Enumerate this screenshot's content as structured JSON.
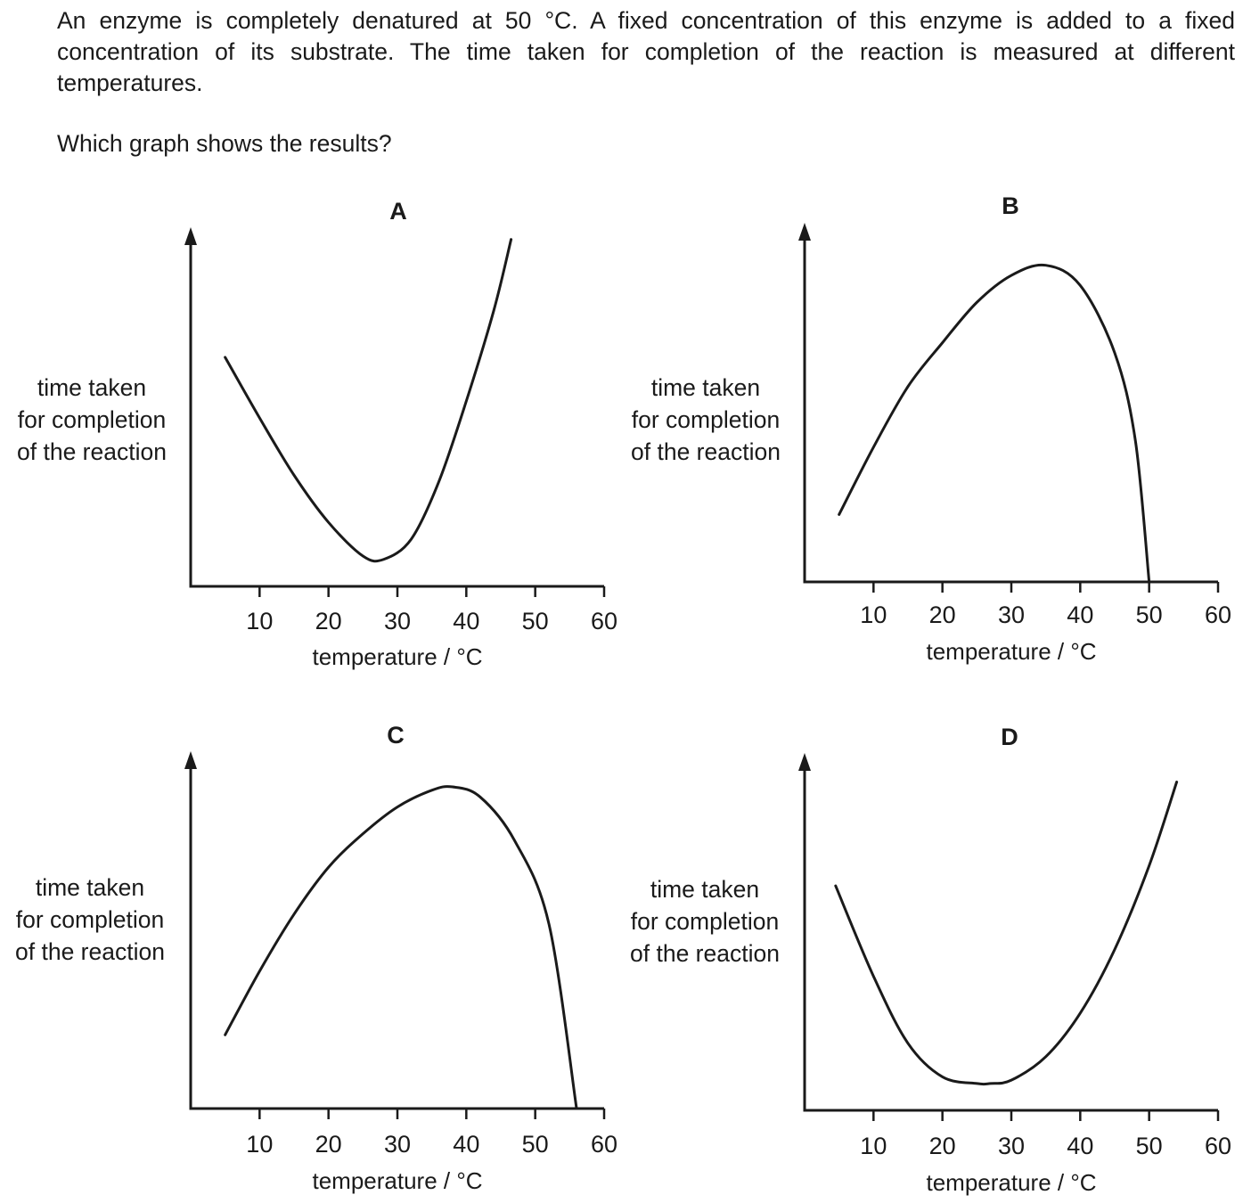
{
  "question": {
    "text": "An enzyme is completely denatured at 50 °C. A fixed concentration of this enzyme is added to a fixed concentration of its substrate. The time taken for completion of the reaction is measured at different temperatures.",
    "prompt": "Which graph shows the results?"
  },
  "colors": {
    "line": "#1a1a1a",
    "background": "#ffffff"
  },
  "chart_data": [
    {
      "type": "line",
      "title": "A",
      "xlabel": "temperature / °C",
      "ylabel": [
        "time taken",
        "for completion",
        "of the reaction"
      ],
      "xlim": [
        0,
        60
      ],
      "x_ticks": [
        10,
        20,
        30,
        40,
        50,
        60
      ],
      "y_ticks": [],
      "y_scale": "relative (no values printed)",
      "grid": false,
      "series": [
        {
          "x": [
            5,
            10,
            15,
            20,
            25,
            28,
            32,
            36,
            40,
            44,
            46.5
          ],
          "y": [
            0.68,
            0.5,
            0.33,
            0.19,
            0.09,
            0.08,
            0.14,
            0.31,
            0.55,
            0.82,
            1.03
          ]
        }
      ]
    },
    {
      "type": "line",
      "title": "B",
      "xlabel": "temperature / °C",
      "ylabel": [
        "time taken",
        "for completion",
        "of the reaction"
      ],
      "xlim": [
        0,
        60
      ],
      "x_ticks": [
        10,
        20,
        30,
        40,
        50,
        60
      ],
      "y_ticks": [],
      "y_scale": "relative (no values printed)",
      "grid": false,
      "series": [
        {
          "x": [
            5,
            10,
            15,
            20,
            25,
            30,
            35,
            40,
            45,
            48,
            50
          ],
          "y": [
            0.2,
            0.4,
            0.58,
            0.71,
            0.83,
            0.91,
            0.94,
            0.88,
            0.68,
            0.42,
            0.0
          ]
        }
      ]
    },
    {
      "type": "line",
      "title": "C",
      "xlabel": "temperature / °C",
      "ylabel": [
        "time taken",
        "for completion",
        "of the reaction"
      ],
      "xlim": [
        0,
        60
      ],
      "x_ticks": [
        10,
        20,
        30,
        40,
        50,
        60
      ],
      "y_ticks": [],
      "y_scale": "relative (no values printed)",
      "grid": false,
      "series": [
        {
          "x": [
            5,
            10,
            15,
            20,
            25,
            30,
            35,
            38,
            42,
            47,
            52,
            56
          ],
          "y": [
            0.22,
            0.41,
            0.58,
            0.72,
            0.82,
            0.9,
            0.95,
            0.96,
            0.93,
            0.8,
            0.55,
            0.0
          ]
        }
      ]
    },
    {
      "type": "line",
      "title": "D",
      "xlabel": "temperature / °C",
      "ylabel": [
        "time taken",
        "for completion",
        "of the reaction"
      ],
      "xlim": [
        0,
        60
      ],
      "x_ticks": [
        10,
        20,
        30,
        40,
        50,
        60
      ],
      "y_ticks": [],
      "y_scale": "relative (no values printed)",
      "grid": false,
      "series": [
        {
          "x": [
            4.5,
            10,
            15,
            20,
            25,
            27,
            30,
            35,
            40,
            45,
            50,
            54
          ],
          "y": [
            0.67,
            0.4,
            0.2,
            0.1,
            0.08,
            0.08,
            0.09,
            0.16,
            0.29,
            0.48,
            0.73,
            0.98
          ]
        }
      ]
    }
  ]
}
